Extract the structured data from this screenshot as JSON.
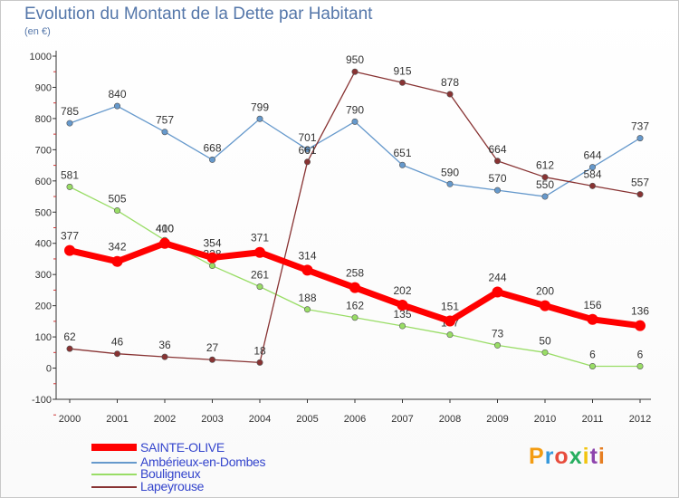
{
  "header": {
    "title": "Evolution du Montant de la Dette par Habitant",
    "subtitle": "(en €)"
  },
  "logo": {
    "text": "Proxiti",
    "colors": [
      "#f39c12",
      "#3498db",
      "#e74c3c",
      "#27ae60",
      "#f1c40f",
      "#8e44ad",
      "#e67e22"
    ]
  },
  "chart_data": {
    "type": "line",
    "x": [
      "2000",
      "2001",
      "2002",
      "2003",
      "2004",
      "2005",
      "2006",
      "2007",
      "2008",
      "2009",
      "2010",
      "2011",
      "2012"
    ],
    "ylim": [
      -100,
      1000
    ],
    "yticks": [
      "-100",
      "0",
      "100",
      "200",
      "300",
      "400",
      "500",
      "600",
      "700",
      "800",
      "900",
      "1000"
    ],
    "grid": false,
    "legend_position": "bottom-left",
    "series": [
      {
        "name": "SAINTE-OLIVE",
        "color": "#ff0000",
        "values": [
          377,
          342,
          400,
          354,
          371,
          314,
          258,
          202,
          151,
          244,
          200,
          156,
          136
        ]
      },
      {
        "name": "Ambérieux-en-Dombes",
        "color": "#6699cc",
        "values": [
          785,
          840,
          757,
          668,
          799,
          701,
          790,
          651,
          590,
          570,
          550,
          644,
          737
        ]
      },
      {
        "name": "Bouligneux",
        "color": "#99dd66",
        "values": [
          581,
          505,
          410,
          328,
          261,
          188,
          162,
          135,
          107,
          73,
          50,
          6,
          6
        ]
      },
      {
        "name": "Lapeyrouse",
        "color": "#883333",
        "values": [
          62,
          46,
          36,
          27,
          18,
          661,
          950,
          915,
          878,
          664,
          612,
          584,
          557
        ]
      }
    ]
  }
}
